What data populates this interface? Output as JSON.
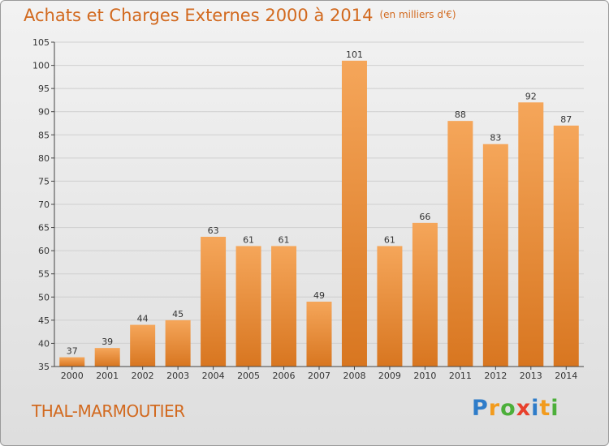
{
  "title": "Achats et Charges Externes 2000 à 2014",
  "subtitle": "(en milliers d'€)",
  "commune": "THAL-MARMOUTIER",
  "logo": {
    "text": "Proxiti",
    "letters": [
      {
        "ch": "P",
        "color": "#2e7cc9"
      },
      {
        "ch": "r",
        "color": "#f29b1d"
      },
      {
        "ch": "o",
        "color": "#4caf3a"
      },
      {
        "ch": "x",
        "color": "#e8402c"
      },
      {
        "ch": "i",
        "color": "#2e7cc9"
      },
      {
        "ch": "t",
        "color": "#f29b1d"
      },
      {
        "ch": "i",
        "color": "#4caf3a"
      }
    ]
  },
  "colors": {
    "title": "#d2691e",
    "bar_top": "#f5a65a",
    "bar_bottom": "#d87620",
    "grid": "#cfcfcf",
    "axis": "#444444",
    "text": "#333333"
  },
  "chart_data": {
    "type": "bar",
    "categories": [
      "2000",
      "2001",
      "2002",
      "2003",
      "2004",
      "2005",
      "2006",
      "2007",
      "2008",
      "2009",
      "2010",
      "2011",
      "2012",
      "2013",
      "2014"
    ],
    "values": [
      37,
      39,
      44,
      45,
      63,
      61,
      61,
      49,
      101,
      61,
      66,
      88,
      83,
      92,
      87
    ],
    "ylim": [
      35,
      105
    ],
    "yticks": [
      35,
      40,
      45,
      50,
      55,
      60,
      65,
      70,
      75,
      80,
      85,
      90,
      95,
      100,
      105
    ],
    "grid": true,
    "legend": false
  }
}
